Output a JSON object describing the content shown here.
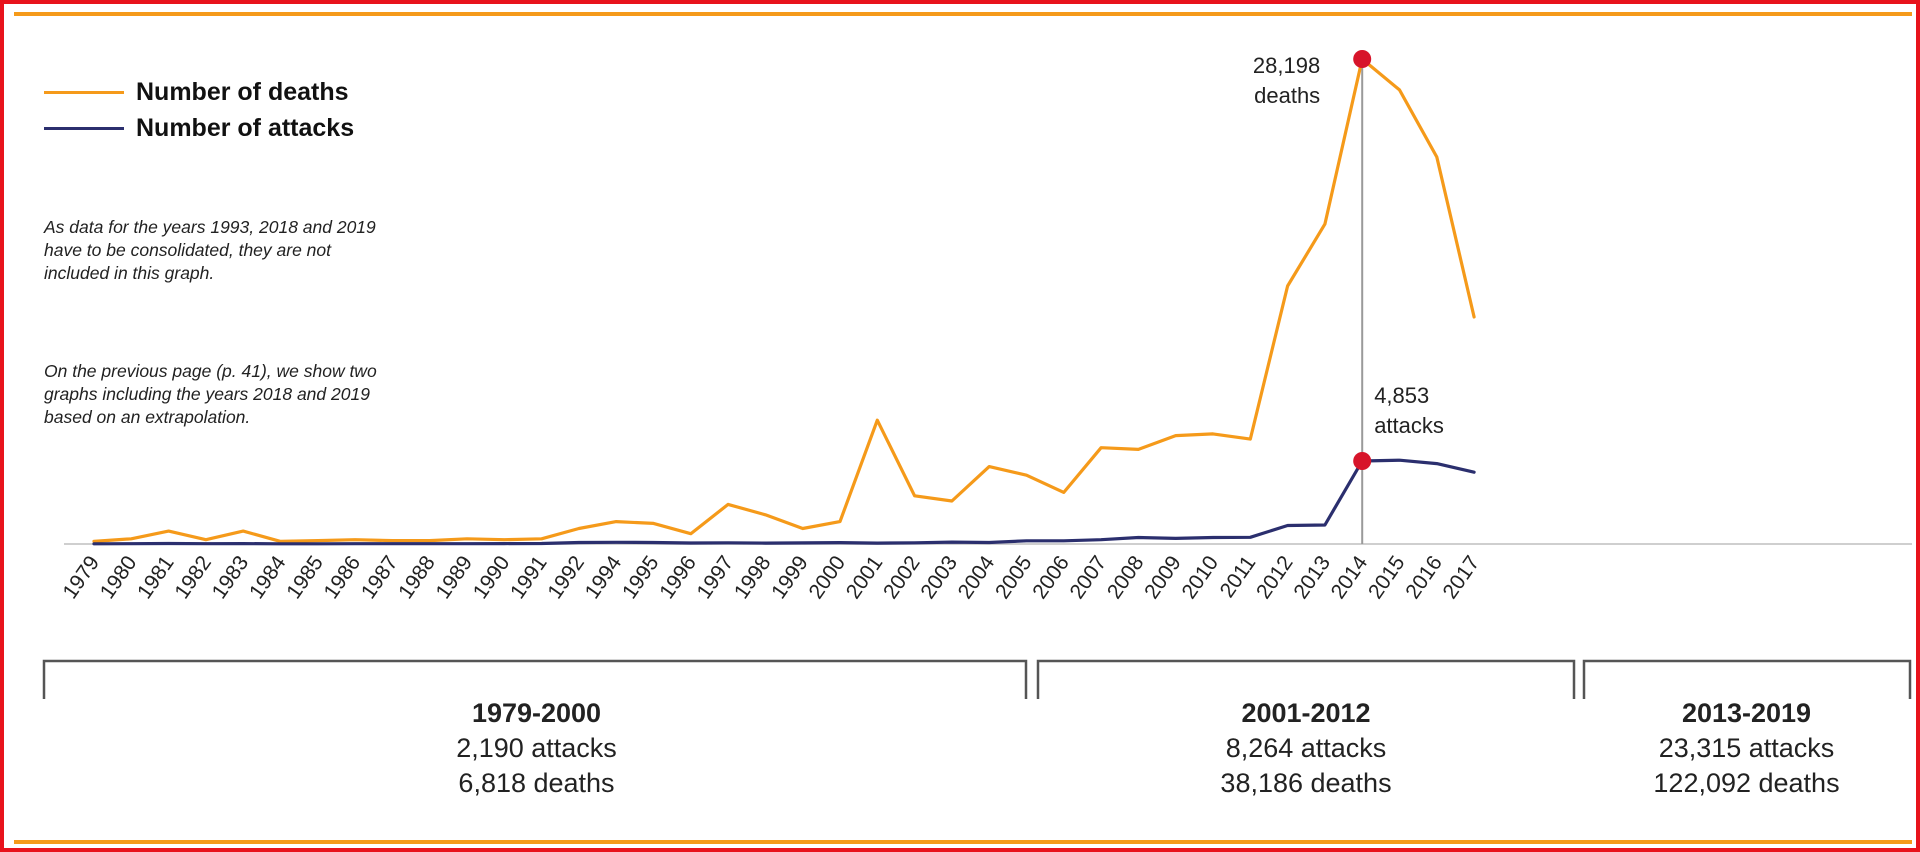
{
  "chart_data": {
    "type": "line",
    "x": [
      "1979",
      "1980",
      "1981",
      "1982",
      "1983",
      "1984",
      "1985",
      "1986",
      "1987",
      "1988",
      "1989",
      "1990",
      "1991",
      "1992",
      "1994",
      "1995",
      "1996",
      "1997",
      "1998",
      "1999",
      "2000",
      "2001",
      "2002",
      "2003",
      "2004",
      "2005",
      "2006",
      "2007",
      "2008",
      "2009",
      "2010",
      "2011",
      "2012",
      "2013",
      "2014",
      "2015",
      "2016",
      "2017"
    ],
    "series": [
      {
        "name": "Number of deaths",
        "color": "#f59a1a",
        "values": [
          150,
          300,
          750,
          250,
          750,
          150,
          200,
          250,
          200,
          200,
          300,
          250,
          300,
          900,
          1300,
          1200,
          600,
          2300,
          1700,
          900,
          1300,
          7200,
          2800,
          2500,
          4500,
          4000,
          3000,
          5600,
          5500,
          6300,
          6400,
          6100,
          15000,
          18600,
          28198,
          26400,
          22500,
          13200
        ]
      },
      {
        "name": "Number of attacks",
        "color": "#2b2f6e",
        "values": [
          10,
          20,
          30,
          15,
          25,
          10,
          12,
          15,
          15,
          15,
          20,
          25,
          30,
          90,
          100,
          85,
          60,
          70,
          55,
          65,
          80,
          50,
          70,
          110,
          90,
          190,
          190,
          250,
          380,
          330,
          380,
          390,
          1080,
          1110,
          4853,
          4900,
          4700,
          4200
        ]
      }
    ],
    "annotations": [
      {
        "value_line1": "28,198",
        "value_line2": "deaths",
        "x": "2014",
        "series": "Number of deaths"
      },
      {
        "value_line1": "4,853",
        "value_line2": "attacks",
        "x": "2014",
        "series": "Number of attacks"
      }
    ]
  },
  "legend": [
    {
      "label": "Number of deaths",
      "color": "#f59a1a"
    },
    {
      "label": "Number of attacks",
      "color": "#2b2f6e"
    }
  ],
  "notes": {
    "note1": [
      "As data for the years 1993, 2018 and 2019",
      "have to be consolidated, they are not",
      "included in this graph."
    ],
    "note2": [
      "On the previous page (p. 41), we show two",
      "graphs including the years 2018 and 2019",
      "based on an extrapolation."
    ]
  },
  "periods": [
    {
      "title": "1979-2000",
      "attacks": "2,190 attacks",
      "deaths": "6,818 deaths"
    },
    {
      "title": "2001-2012",
      "attacks": "8,264 attacks",
      "deaths": "38,186 deaths"
    },
    {
      "title": "2013-2019",
      "attacks": "23,315 attacks",
      "deaths": "122,092 deaths"
    }
  ],
  "colors": {
    "frame": "#e8131c",
    "accent": "#f59a1a",
    "marker": "#d7142a",
    "attacks": "#2b2f6e",
    "deaths": "#f59a1a"
  }
}
